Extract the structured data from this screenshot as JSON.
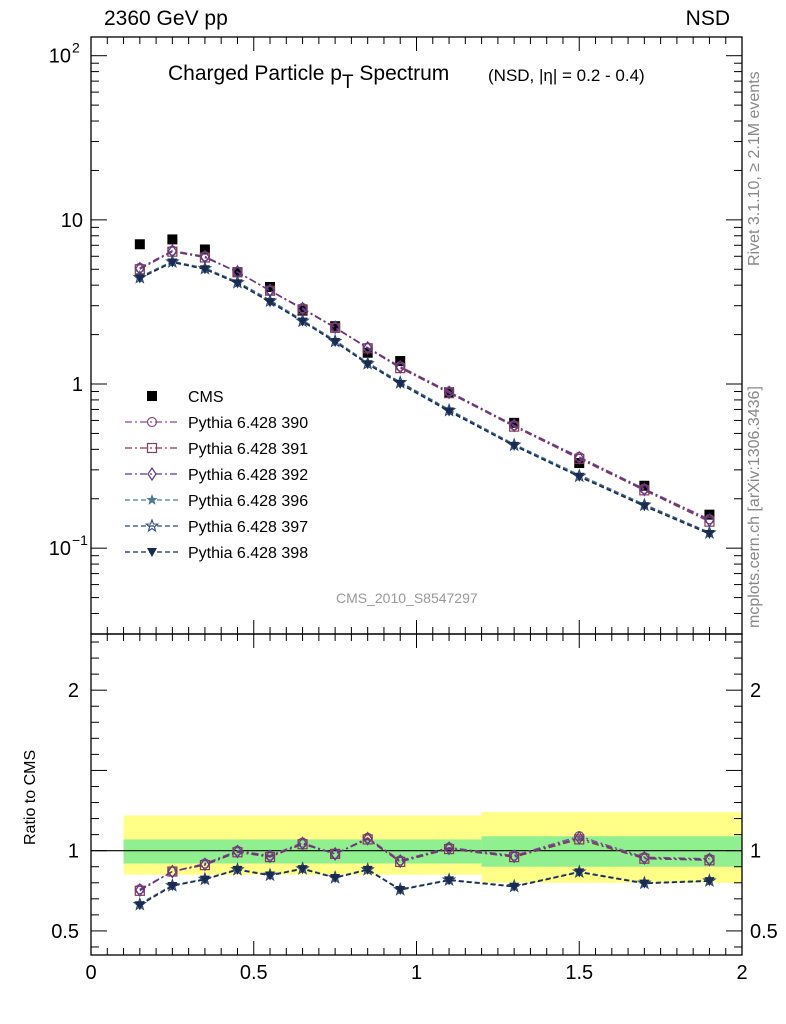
{
  "header": {
    "left": "2360 GeV pp",
    "right": "NSD",
    "title_main": "Charged Particle p",
    "title_sub": "T",
    "title_rest": " Spectrum",
    "subtitle": "(NSD, |η| = 0.2 - 0.4)",
    "watermark": "CMS_2010_S8547297",
    "rivet_text": "Rivet 3.1.10, ≥ 2.1M events",
    "mcplots_text": "mcplots.cern.ch [arXiv:1306.3436]"
  },
  "chart_data": [
    {
      "type": "scatter",
      "panel": "main",
      "yscale": "log",
      "xlim": [
        0,
        2
      ],
      "ylim": [
        0.03,
        130
      ],
      "yticks": [
        {
          "value": 0.1,
          "label": "10",
          "exp": "−1"
        },
        {
          "value": 1,
          "label": "1",
          "exp": ""
        },
        {
          "value": 10,
          "label": "10",
          "exp": ""
        },
        {
          "value": 100,
          "label": "10",
          "exp": "2"
        }
      ],
      "x": [
        0.15,
        0.25,
        0.35,
        0.45,
        0.55,
        0.65,
        0.75,
        0.85,
        0.95,
        1.1,
        1.3,
        1.5,
        1.7,
        1.9
      ],
      "legend_position": "center-left",
      "series": [
        {
          "name": "CMS",
          "marker": "square",
          "color": "#000000",
          "dash": "none",
          "values": [
            7.1,
            7.6,
            6.6,
            4.8,
            3.9,
            2.8,
            2.25,
            1.55,
            1.38,
            0.89,
            0.58,
            0.33,
            0.24,
            0.16
          ]
        },
        {
          "name": "Pythia 6.428 390",
          "marker": "circle-open",
          "color": "#8b4e8b",
          "dash": "dashdot",
          "values": [
            5.1,
            6.5,
            6.0,
            4.8,
            3.7,
            2.9,
            2.2,
            1.67,
            1.28,
            0.9,
            0.56,
            0.36,
            0.23,
            0.15
          ]
        },
        {
          "name": "Pythia 6.428 391",
          "marker": "square-open",
          "color": "#8b3a4f",
          "dash": "dashdot",
          "values": [
            5.0,
            6.4,
            5.9,
            4.8,
            3.7,
            2.85,
            2.2,
            1.65,
            1.25,
            0.88,
            0.55,
            0.35,
            0.225,
            0.145
          ]
        },
        {
          "name": "Pythia 6.428 392",
          "marker": "diamond-open",
          "color": "#5b3a8b",
          "dash": "dashdot",
          "values": [
            5.05,
            6.45,
            5.95,
            4.82,
            3.72,
            2.88,
            2.22,
            1.66,
            1.27,
            0.89,
            0.56,
            0.355,
            0.228,
            0.148
          ]
        },
        {
          "name": "Pythia 6.428 396",
          "marker": "star-filled",
          "color": "#4d7a8b",
          "dash": "dashed",
          "values": [
            4.5,
            5.6,
            5.1,
            4.2,
            3.25,
            2.45,
            1.85,
            1.35,
            1.03,
            0.7,
            0.43,
            0.28,
            0.185,
            0.125
          ]
        },
        {
          "name": "Pythia 6.428 397",
          "marker": "star-open",
          "color": "#2e4a7a",
          "dash": "dashed",
          "values": [
            4.45,
            5.55,
            5.05,
            4.15,
            3.2,
            2.42,
            1.82,
            1.33,
            1.02,
            0.69,
            0.425,
            0.275,
            0.183,
            0.124
          ]
        },
        {
          "name": "Pythia 6.428 398",
          "marker": "triangle-down",
          "color": "#1a2a50",
          "dash": "dashed",
          "values": [
            4.4,
            5.5,
            5.0,
            4.1,
            3.15,
            2.4,
            1.8,
            1.32,
            1.0,
            0.68,
            0.42,
            0.272,
            0.18,
            0.122
          ]
        }
      ]
    },
    {
      "type": "scatter",
      "panel": "ratio",
      "ylabel": "Ratio to CMS",
      "xlim": [
        0,
        2
      ],
      "ylim": [
        0.35,
        2.35
      ],
      "xticks": [
        0,
        0.5,
        1,
        1.5,
        2
      ],
      "xticklabels": [
        "0",
        "0.5",
        "1",
        "1.5",
        "2"
      ],
      "yticks": [
        0.5,
        1,
        2
      ],
      "yticklabels": [
        "0.5",
        "1",
        "2"
      ],
      "bands": [
        {
          "name": "outer",
          "color": "#ffff88",
          "bins": [
            [
              0.1,
              1.2,
              0.85,
              1.22
            ],
            [
              1.2,
              2.0,
              0.8,
              1.24
            ]
          ]
        },
        {
          "name": "inner",
          "color": "#90f090",
          "bins": [
            [
              0.1,
              1.2,
              0.92,
              1.07
            ],
            [
              1.2,
              2.0,
              0.9,
              1.09
            ]
          ]
        }
      ],
      "x": [
        0.15,
        0.25,
        0.35,
        0.45,
        0.55,
        0.65,
        0.75,
        0.85,
        0.95,
        1.1,
        1.3,
        1.5,
        1.7,
        1.9
      ],
      "series": [
        {
          "name": "Pythia 6.428 390",
          "marker": "circle-open",
          "color": "#8b4e8b",
          "dash": "dashdot",
          "values": [
            0.76,
            0.87,
            0.92,
            1.0,
            0.97,
            1.05,
            0.98,
            1.08,
            0.94,
            1.02,
            0.97,
            1.09,
            0.96,
            0.95
          ]
        },
        {
          "name": "Pythia 6.428 391",
          "marker": "square-open",
          "color": "#8b3a4f",
          "dash": "dashdot",
          "values": [
            0.75,
            0.87,
            0.91,
            0.99,
            0.96,
            1.04,
            0.98,
            1.07,
            0.93,
            1.01,
            0.96,
            1.07,
            0.95,
            0.94
          ]
        },
        {
          "name": "Pythia 6.428 392",
          "marker": "diamond-open",
          "color": "#5b3a8b",
          "dash": "dashdot",
          "values": [
            0.755,
            0.87,
            0.915,
            0.995,
            0.965,
            1.045,
            0.98,
            1.075,
            0.935,
            1.015,
            0.965,
            1.08,
            0.955,
            0.945
          ]
        },
        {
          "name": "Pythia 6.428 396",
          "marker": "star-filled",
          "color": "#4d7a8b",
          "dash": "dashed",
          "values": [
            0.67,
            0.785,
            0.825,
            0.885,
            0.85,
            0.89,
            0.835,
            0.885,
            0.76,
            0.82,
            0.78,
            0.87,
            0.8,
            0.815
          ]
        },
        {
          "name": "Pythia 6.428 397",
          "marker": "star-open",
          "color": "#2e4a7a",
          "dash": "dashed",
          "values": [
            0.665,
            0.782,
            0.822,
            0.882,
            0.848,
            0.888,
            0.832,
            0.882,
            0.758,
            0.818,
            0.778,
            0.868,
            0.798,
            0.812
          ]
        },
        {
          "name": "Pythia 6.428 398",
          "marker": "triangle-down",
          "color": "#1a2a50",
          "dash": "dashed",
          "values": [
            0.66,
            0.78,
            0.82,
            0.88,
            0.845,
            0.885,
            0.83,
            0.88,
            0.755,
            0.815,
            0.775,
            0.865,
            0.795,
            0.81
          ]
        }
      ]
    }
  ]
}
